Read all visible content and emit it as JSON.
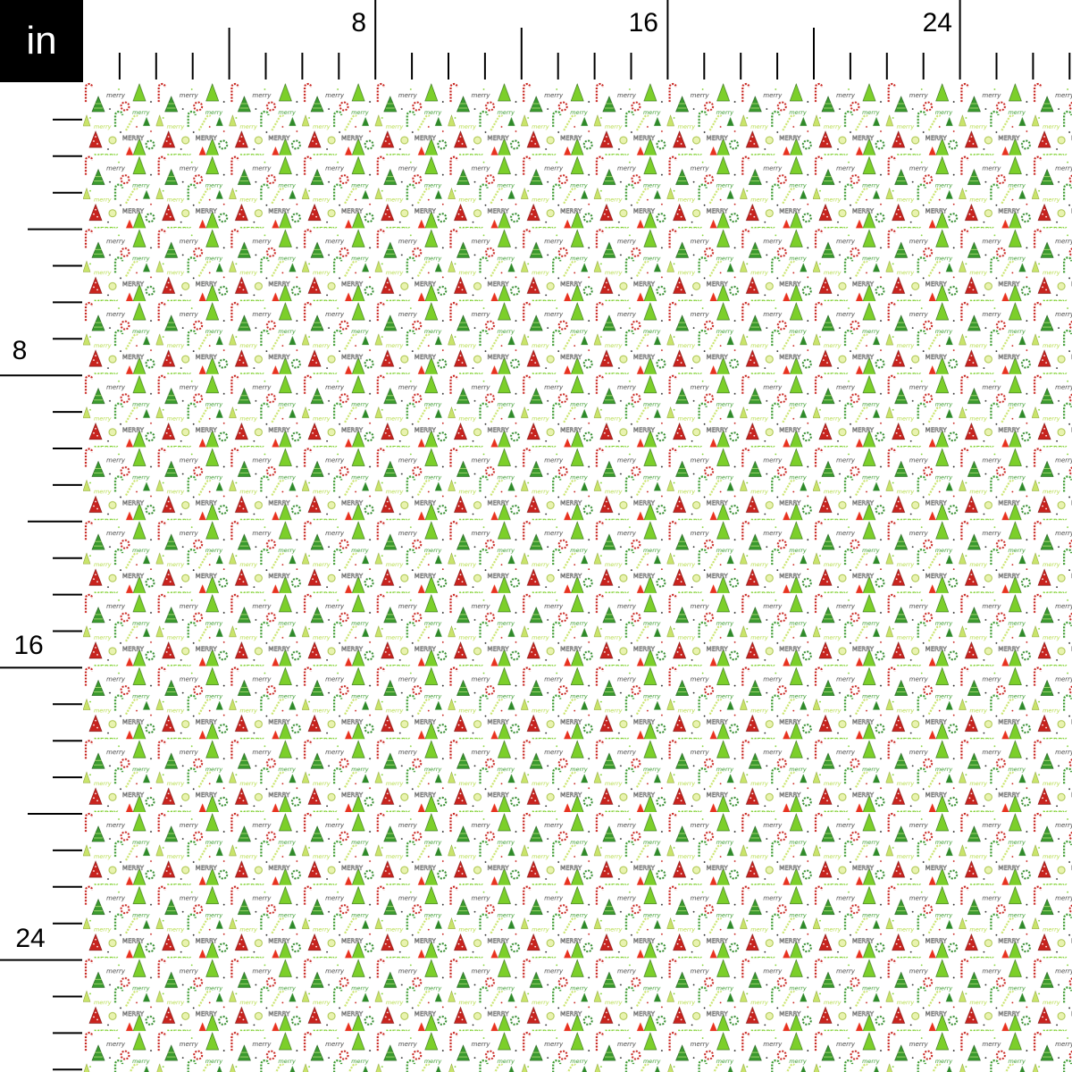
{
  "ruler": {
    "unit": "in",
    "top_labels": [
      "8",
      "16",
      "24"
    ],
    "left_labels": [
      "8",
      "16",
      "24"
    ]
  },
  "fabric": {
    "pattern": "christmas trees, candy canes, peppermints",
    "words": [
      "merry",
      "MERRY"
    ],
    "colors": {
      "red": "#c8231e",
      "bright_red": "#e8321f",
      "green": "#3a9a2e",
      "light_green": "#7ccf2a",
      "lime": "#c9e46a",
      "text": "#444444",
      "background": "#ffffff"
    }
  }
}
